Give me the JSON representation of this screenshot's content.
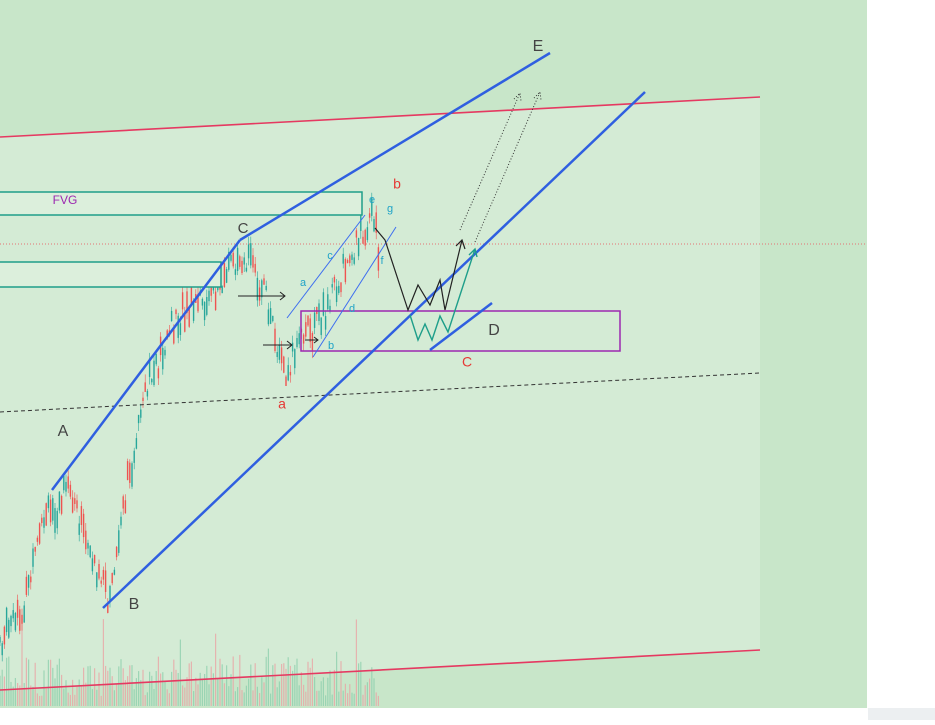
{
  "annotations": [
    "E",
    "FVG",
    "C",
    "b",
    "e",
    "g",
    "c",
    "a",
    "f",
    "d",
    "b",
    "D",
    "C",
    "a",
    "A",
    "B"
  ]
}
